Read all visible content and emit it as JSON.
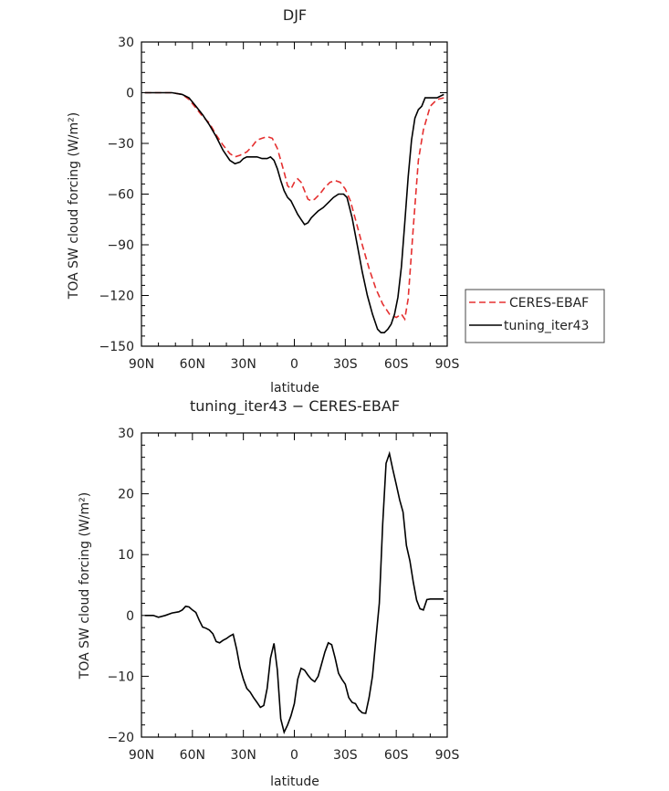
{
  "chart_data": [
    {
      "type": "line",
      "title": "DJF",
      "xlabel": "latitude",
      "ylabel": "TOA SW cloud forcing (W/m²)",
      "ylim": [
        -150,
        30
      ],
      "xlim": [
        -90,
        90
      ],
      "x_tick_values": [
        -90,
        -60,
        -30,
        0,
        30,
        60,
        90
      ],
      "x_tick_labels": [
        "90N",
        "60N",
        "30N",
        "0",
        "30S",
        "60S",
        "90S"
      ],
      "y_ticks": [
        30,
        0,
        -30,
        -60,
        -90,
        -120,
        -150
      ],
      "legend": {
        "position": "right",
        "entries": [
          "CERES-EBAF",
          "tuning_iter43"
        ]
      },
      "series": [
        {
          "name": "CERES-EBAF",
          "color": "#e53030",
          "dash": true,
          "x": [
            -88,
            -80,
            -72,
            -66,
            -62,
            -58,
            -54,
            -50,
            -46,
            -42,
            -38,
            -35,
            -32,
            -28,
            -25,
            -22,
            -19,
            -16,
            -13,
            -10,
            -8,
            -6,
            -4,
            -2,
            0,
            2,
            4,
            6,
            8,
            10,
            12,
            15,
            18,
            21,
            24,
            27,
            30,
            33,
            36,
            40,
            44,
            48,
            52,
            56,
            60,
            63,
            65,
            67,
            70,
            73,
            76,
            80,
            84,
            88
          ],
          "y": [
            0,
            0,
            0,
            -1,
            -4,
            -9,
            -14,
            -18,
            -25,
            -31,
            -36,
            -38,
            -37,
            -35,
            -32,
            -28,
            -27,
            -26,
            -27,
            -33,
            -40,
            -47,
            -55,
            -57,
            -53,
            -51,
            -53,
            -58,
            -63,
            -64,
            -63,
            -60,
            -56,
            -53,
            -52,
            -53,
            -57,
            -64,
            -75,
            -90,
            -104,
            -116,
            -125,
            -131,
            -133,
            -131,
            -134,
            -122,
            -80,
            -40,
            -22,
            -8,
            -4,
            -3
          ]
        },
        {
          "name": "tuning_iter43",
          "color": "#000000",
          "dash": false,
          "x": [
            -88,
            -80,
            -72,
            -66,
            -62,
            -58,
            -54,
            -50,
            -46,
            -42,
            -38,
            -35,
            -32,
            -30,
            -28,
            -25,
            -22,
            -19,
            -16,
            -14,
            -12,
            -10,
            -8,
            -6,
            -4,
            -2,
            0,
            2,
            4,
            6,
            8,
            10,
            12,
            14,
            17,
            20,
            23,
            26,
            29,
            31,
            34,
            37,
            40,
            43,
            46,
            49,
            51,
            53,
            55,
            57,
            59,
            61,
            63,
            65,
            67,
            69,
            71,
            73,
            75,
            77,
            80,
            84,
            88
          ],
          "y": [
            0,
            0,
            0,
            -1,
            -3,
            -8,
            -13,
            -19,
            -26,
            -34,
            -40,
            -42,
            -41,
            -39,
            -38,
            -38,
            -38,
            -39,
            -39,
            -38,
            -40,
            -45,
            -52,
            -58,
            -62,
            -64,
            -68,
            -72,
            -75,
            -78,
            -77,
            -74,
            -72,
            -70,
            -68,
            -65,
            -62,
            -60,
            -60,
            -62,
            -74,
            -90,
            -106,
            -120,
            -131,
            -140,
            -142,
            -142,
            -140,
            -137,
            -131,
            -121,
            -103,
            -77,
            -50,
            -28,
            -15,
            -10,
            -8,
            -3,
            -3,
            -3,
            -1
          ]
        }
      ]
    },
    {
      "type": "line",
      "title": "tuning_iter43 − CERES-EBAF",
      "xlabel": "latitude",
      "ylabel": "TOA SW cloud forcing (W/m²)",
      "ylim": [
        -20,
        30
      ],
      "xlim": [
        -90,
        90
      ],
      "x_tick_values": [
        -90,
        -60,
        -30,
        0,
        30,
        60,
        90
      ],
      "x_tick_labels": [
        "90N",
        "60N",
        "30N",
        "0",
        "30S",
        "60S",
        "90S"
      ],
      "y_ticks": [
        30,
        20,
        10,
        0,
        -10,
        -20
      ],
      "series": [
        {
          "name": "tuning_iter43 - CERES-EBAF",
          "color": "#000000",
          "dash": false,
          "x": [
            -88,
            -83,
            -80,
            -76,
            -72,
            -68,
            -66,
            -64,
            -62,
            -60,
            -58,
            -56,
            -54,
            -52,
            -50,
            -48,
            -46,
            -44,
            -42,
            -40,
            -38,
            -36,
            -34,
            -32,
            -30,
            -28,
            -26,
            -24,
            -22,
            -20,
            -18,
            -16,
            -14,
            -12,
            -10,
            -8,
            -6,
            -4,
            -2,
            0,
            2,
            4,
            6,
            8,
            10,
            12,
            14,
            16,
            18,
            20,
            22,
            24,
            26,
            28,
            30,
            32,
            34,
            36,
            38,
            40,
            42,
            44,
            46,
            48,
            50,
            52,
            54,
            56,
            58,
            60,
            62,
            64,
            66,
            68,
            70,
            72,
            74,
            76,
            78,
            80,
            82,
            84,
            86,
            88
          ],
          "y": [
            0,
            0,
            -0.3,
            0,
            0.4,
            0.6,
            0.9,
            1.5,
            1.4,
            0.9,
            0.5,
            -0.8,
            -1.9,
            -2.1,
            -2.4,
            -3.0,
            -4.3,
            -4.5,
            -4.1,
            -3.8,
            -3.4,
            -3.1,
            -5.5,
            -8.5,
            -10.5,
            -12.0,
            -12.6,
            -13.5,
            -14.3,
            -15.1,
            -14.8,
            -12.0,
            -7.0,
            -4.6,
            -9.0,
            -17.0,
            -19.2,
            -18.0,
            -16.5,
            -14.5,
            -10.5,
            -8.7,
            -9.0,
            -9.8,
            -10.5,
            -10.9,
            -10.0,
            -8.0,
            -6.0,
            -4.5,
            -4.8,
            -7.0,
            -9.5,
            -10.5,
            -11.3,
            -13.5,
            -14.3,
            -14.5,
            -15.5,
            -16.0,
            -16.1,
            -13.5,
            -10.0,
            -4.0,
            2.0,
            15.0,
            25.0,
            26.6,
            24.0,
            21.5,
            19.0,
            17.0,
            11.5,
            9.0,
            5.5,
            2.5,
            1.1,
            0.9,
            2.6,
            2.7,
            2.7,
            2.7,
            2.7,
            2.7
          ]
        }
      ]
    }
  ]
}
